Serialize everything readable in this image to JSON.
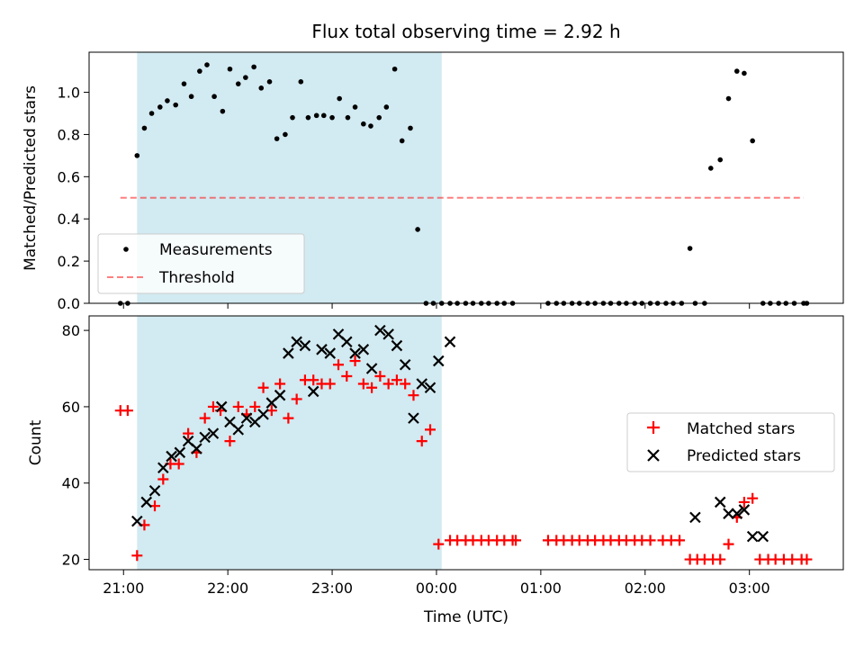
{
  "title": "Flux total observing time = 2.92 h",
  "colors": {
    "shade": "#add8e6",
    "measurement": "#000000",
    "threshold": "#ff0000",
    "matched": "#ff0000",
    "predicted": "#000000"
  },
  "chart_data": [
    {
      "type": "scatter",
      "ylabel": "Matched/Predicted stars",
      "ylim": [
        0,
        1.19
      ],
      "xlim": [
        20.67,
        27.9
      ],
      "x_ticks": [],
      "y_ticks": [
        "0.0",
        "0.2",
        "0.4",
        "0.6",
        "0.8",
        "1.0"
      ],
      "y_tick_values": [
        0,
        0.2,
        0.4,
        0.6,
        0.8,
        1.0
      ],
      "shaded_x_range": [
        21.13,
        24.05
      ],
      "legend": {
        "placement": "lower-left",
        "entries": [
          "Measurements",
          "Threshold"
        ]
      },
      "threshold": {
        "name": "Threshold",
        "y": 0.5,
        "x": [
          20.97,
          27.52
        ]
      },
      "series": [
        {
          "name": "Measurements",
          "x": [
            20.97,
            21.04,
            21.13,
            21.2,
            21.27,
            21.35,
            21.42,
            21.5,
            21.58,
            21.65,
            21.73,
            21.8,
            21.87,
            21.95,
            22.02,
            22.1,
            22.17,
            22.25,
            22.32,
            22.4,
            22.47,
            22.55,
            22.62,
            22.7,
            22.77,
            22.85,
            22.92,
            23.0,
            23.07,
            23.15,
            23.22,
            23.3,
            23.37,
            23.45,
            23.52,
            23.6,
            23.67,
            23.75,
            23.82,
            23.9,
            23.97,
            24.05,
            24.13,
            24.2,
            24.28,
            24.35,
            24.43,
            24.5,
            24.58,
            24.65,
            24.73,
            25.07,
            25.15,
            25.22,
            25.3,
            25.37,
            25.45,
            25.52,
            25.6,
            25.67,
            25.75,
            25.82,
            25.9,
            25.97,
            26.05,
            26.12,
            26.2,
            26.27,
            26.35,
            26.43,
            26.48,
            26.57,
            26.63,
            26.72,
            26.8,
            26.88,
            26.95,
            27.03,
            27.13,
            27.2,
            27.28,
            27.35,
            27.43,
            27.52,
            27.55
          ],
          "y": [
            0.0,
            0.0,
            0.7,
            0.83,
            0.9,
            0.93,
            0.96,
            0.94,
            1.04,
            0.98,
            1.1,
            1.13,
            0.98,
            0.91,
            1.11,
            1.04,
            1.07,
            1.12,
            1.02,
            1.05,
            0.78,
            0.8,
            0.88,
            1.05,
            0.88,
            0.89,
            0.89,
            0.88,
            0.97,
            0.88,
            0.93,
            0.85,
            0.84,
            0.88,
            0.93,
            1.11,
            0.77,
            0.83,
            0.35,
            0.0,
            0.0,
            0.0,
            0.0,
            0.0,
            0.0,
            0.0,
            0.0,
            0.0,
            0.0,
            0.0,
            0.0,
            0.0,
            0.0,
            0.0,
            0.0,
            0.0,
            0.0,
            0.0,
            0.0,
            0.0,
            0.0,
            0.0,
            0.0,
            0.0,
            0.0,
            0.0,
            0.0,
            0.0,
            0.0,
            0.26,
            0.0,
            0.0,
            0.64,
            0.68,
            0.97,
            1.1,
            1.09,
            0.77,
            0.0,
            0.0,
            0.0,
            0.0,
            0.0,
            0.0,
            0.0
          ]
        }
      ]
    },
    {
      "type": "scatter",
      "ylabel": "Count",
      "xlabel": "Time (UTC)",
      "ylim": [
        17.3,
        83.8
      ],
      "xlim": [
        20.67,
        27.9
      ],
      "x_ticks": [
        "21:00",
        "22:00",
        "23:00",
        "00:00",
        "01:00",
        "02:00",
        "03:00"
      ],
      "x_tick_values": [
        21,
        22,
        23,
        24,
        25,
        26,
        27
      ],
      "y_ticks": [
        "20",
        "40",
        "60",
        "80"
      ],
      "y_tick_values": [
        20,
        40,
        60,
        80
      ],
      "shaded_x_range": [
        21.13,
        24.05
      ],
      "legend": {
        "placement": "center-right",
        "entries": [
          "Matched stars",
          "Predicted stars"
        ]
      },
      "series": [
        {
          "name": "Matched stars",
          "marker": "plus",
          "x": [
            20.97,
            21.04,
            21.13,
            21.2,
            21.3,
            21.38,
            21.45,
            21.53,
            21.62,
            21.7,
            21.78,
            21.86,
            21.93,
            22.02,
            22.1,
            22.18,
            22.26,
            22.34,
            22.42,
            22.5,
            22.58,
            22.66,
            22.74,
            22.82,
            22.9,
            22.98,
            23.06,
            23.14,
            23.22,
            23.3,
            23.38,
            23.46,
            23.54,
            23.62,
            23.7,
            23.78,
            23.86,
            23.94,
            24.02,
            24.13,
            24.2,
            24.28,
            24.35,
            24.43,
            24.5,
            24.58,
            24.65,
            24.73,
            24.76,
            25.07,
            25.15,
            25.22,
            25.3,
            25.37,
            25.45,
            25.52,
            25.6,
            25.67,
            25.75,
            25.82,
            25.9,
            25.97,
            26.05,
            26.17,
            26.25,
            26.33,
            26.43,
            26.5,
            26.57,
            26.65,
            26.72,
            26.8,
            26.88,
            26.95,
            27.03,
            27.1,
            27.18,
            27.25,
            27.33,
            27.41,
            27.5,
            27.55
          ],
          "y": [
            59,
            59,
            21,
            29,
            34,
            41,
            45,
            45,
            53,
            48,
            57,
            60,
            59,
            51,
            60,
            58,
            60,
            65,
            59,
            66,
            57,
            62,
            67,
            67,
            66,
            66,
            71,
            68,
            72,
            66,
            65,
            68,
            66,
            67,
            66,
            63,
            51,
            54,
            24,
            25,
            25,
            25,
            25,
            25,
            25,
            25,
            25,
            25,
            25,
            25,
            25,
            25,
            25,
            25,
            25,
            25,
            25,
            25,
            25,
            25,
            25,
            25,
            25,
            25,
            25,
            25,
            20,
            20,
            20,
            20,
            20,
            24,
            31,
            35,
            36,
            20,
            20,
            20,
            20,
            20,
            20,
            20
          ]
        },
        {
          "name": "Predicted stars",
          "marker": "x",
          "x": [
            21.13,
            21.22,
            21.3,
            21.38,
            21.46,
            21.54,
            21.62,
            21.7,
            21.78,
            21.86,
            21.94,
            22.02,
            22.1,
            22.18,
            22.26,
            22.34,
            22.42,
            22.5,
            22.58,
            22.66,
            22.74,
            22.82,
            22.9,
            22.98,
            23.06,
            23.14,
            23.22,
            23.3,
            23.38,
            23.46,
            23.54,
            23.62,
            23.7,
            23.78,
            23.86,
            23.94,
            24.02,
            24.13,
            26.48,
            26.72,
            26.8,
            26.88,
            26.95,
            27.03,
            27.13
          ],
          "y": [
            30,
            35,
            38,
            44,
            47,
            48,
            51,
            49,
            52,
            53,
            60,
            56,
            54,
            57,
            56,
            58,
            61,
            63,
            74,
            77,
            76,
            64,
            75,
            74,
            79,
            77,
            74,
            75,
            70,
            80,
            79,
            76,
            71,
            57,
            66,
            65,
            72,
            77,
            31,
            35,
            32,
            32,
            33,
            26,
            26
          ]
        }
      ]
    }
  ]
}
